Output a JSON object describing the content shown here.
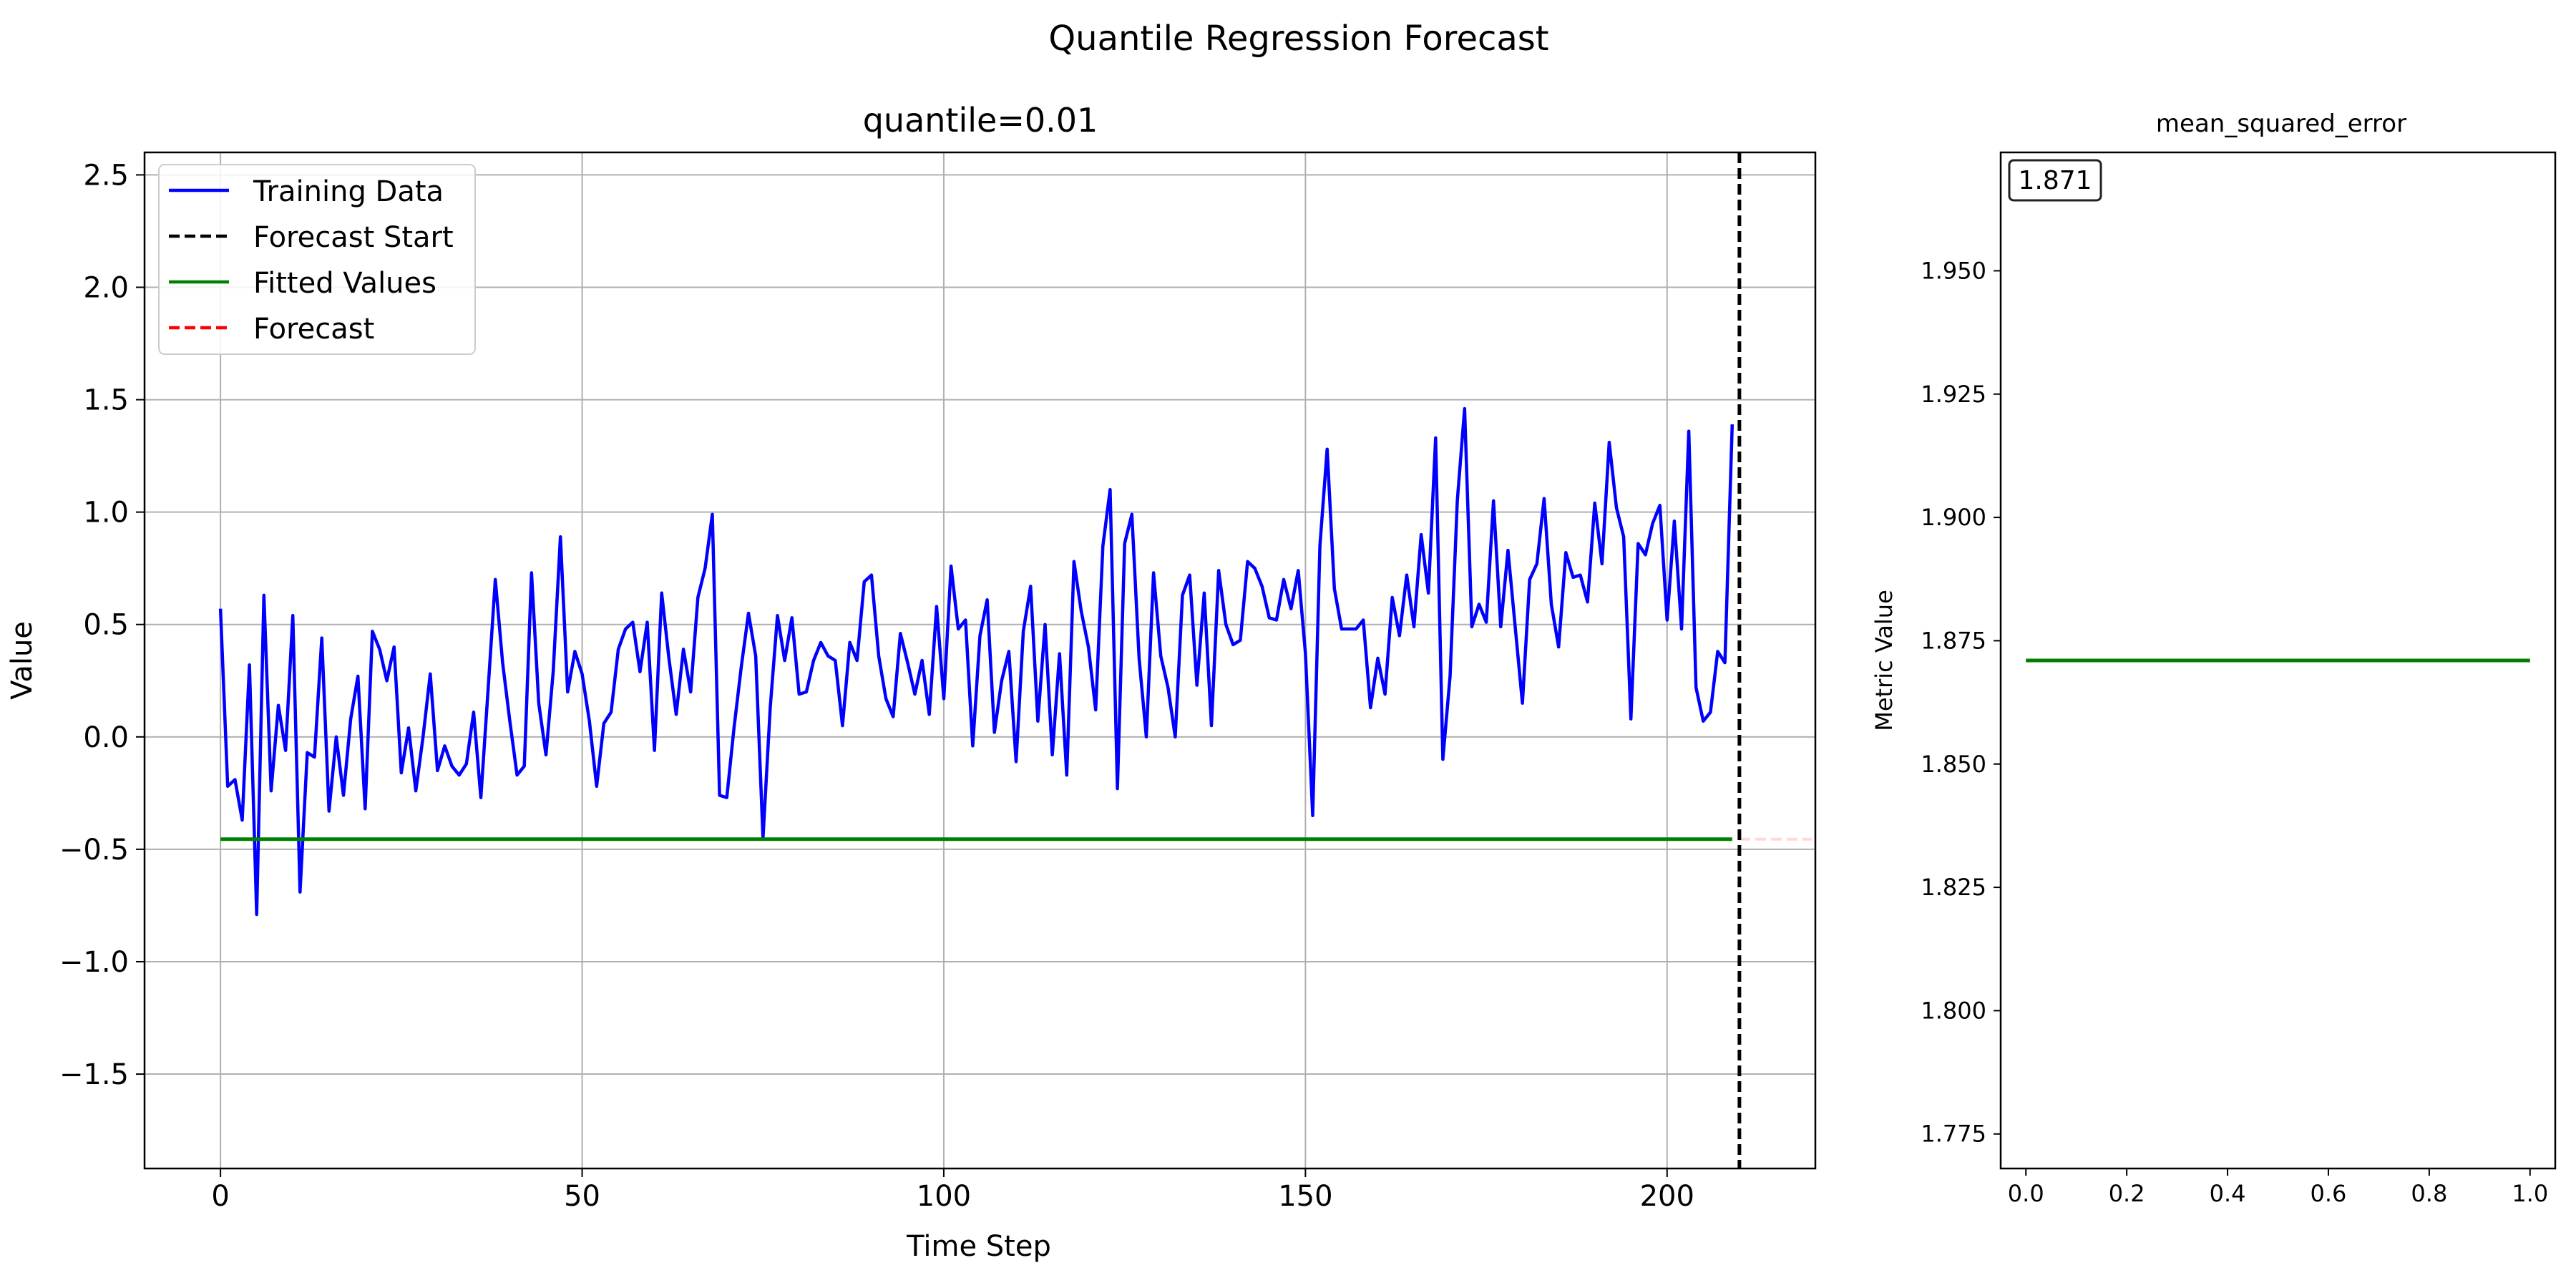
{
  "figure": {
    "suptitle": "Quantile Regression Forecast"
  },
  "chart_data": [
    {
      "type": "line",
      "title": "quantile=0.01",
      "xlabel": "Time Step",
      "ylabel": "Value",
      "xlim": [
        -10.5,
        220.5
      ],
      "ylim": [
        -1.92,
        2.6
      ],
      "xticks": [
        0,
        50,
        100,
        150,
        200
      ],
      "xtick_labels": [
        "0",
        "50",
        "100",
        "150",
        "200"
      ],
      "yticks": [
        -1.5,
        -1.0,
        -0.5,
        0.0,
        0.5,
        1.0,
        1.5,
        2.0,
        2.5
      ],
      "ytick_labels": [
        "−1.5",
        "−1.0",
        "−0.5",
        "0.0",
        "0.5",
        "1.0",
        "1.5",
        "2.0",
        "2.5"
      ],
      "grid": true,
      "legend_position": "top-left",
      "legend": [
        {
          "label": "Training Data",
          "color": "#0000ff",
          "style": "solid"
        },
        {
          "label": "Forecast Start",
          "color": "#000000",
          "style": "dashed"
        },
        {
          "label": "Fitted Values",
          "color": "#008000",
          "style": "solid"
        },
        {
          "label": "Forecast",
          "color": "#ff0000",
          "style": "dashed"
        }
      ],
      "series": [
        {
          "name": "Training Data",
          "color": "#0000ff",
          "x_start": 0,
          "values": [
            0.57,
            -0.22,
            -0.19,
            -0.37,
            0.32,
            -0.79,
            0.63,
            -0.24,
            0.14,
            -0.06,
            0.54,
            -0.69,
            -0.07,
            -0.09,
            0.44,
            -0.33,
            0.0,
            -0.26,
            0.08,
            0.27,
            -0.32,
            0.47,
            0.39,
            0.25,
            0.4,
            -0.16,
            0.04,
            -0.24,
            0.0,
            0.28,
            -0.15,
            -0.04,
            -0.13,
            -0.17,
            -0.12,
            0.11,
            -0.27,
            0.21,
            0.7,
            0.33,
            0.07,
            -0.17,
            -0.13,
            0.73,
            0.15,
            -0.08,
            0.29,
            0.89,
            0.2,
            0.38,
            0.28,
            0.07,
            -0.22,
            0.06,
            0.11,
            0.39,
            0.48,
            0.51,
            0.29,
            0.51,
            -0.06,
            0.64,
            0.35,
            0.1,
            0.39,
            0.2,
            0.62,
            0.75,
            0.99,
            -0.26,
            -0.27,
            0.04,
            0.31,
            0.55,
            0.36,
            -0.45,
            0.13,
            0.54,
            0.34,
            0.53,
            0.19,
            0.2,
            0.34,
            0.42,
            0.36,
            0.34,
            0.05,
            0.42,
            0.34,
            0.69,
            0.72,
            0.36,
            0.17,
            0.09,
            0.46,
            0.33,
            0.19,
            0.34,
            0.1,
            0.58,
            0.17,
            0.76,
            0.48,
            0.52,
            -0.04,
            0.45,
            0.61,
            0.02,
            0.25,
            0.38,
            -0.11,
            0.47,
            0.67,
            0.07,
            0.5,
            -0.08,
            0.37,
            -0.17,
            0.78,
            0.56,
            0.4,
            0.12,
            0.85,
            1.1,
            -0.23,
            0.86,
            0.99,
            0.35,
            0.0,
            0.73,
            0.36,
            0.22,
            0.0,
            0.63,
            0.72,
            0.23,
            0.64,
            0.05,
            0.74,
            0.5,
            0.41,
            0.43,
            0.78,
            0.75,
            0.67,
            0.53,
            0.52,
            0.7,
            0.57,
            0.74,
            0.37,
            -0.35,
            0.85,
            1.28,
            0.66,
            0.48,
            0.48,
            0.48,
            0.52,
            0.13,
            0.35,
            0.19,
            0.62,
            0.45,
            0.72,
            0.49,
            0.9,
            0.64,
            1.33,
            -0.1,
            0.27,
            1.05,
            1.46,
            0.49,
            0.59,
            0.51,
            1.05,
            0.49,
            0.83,
            0.49,
            0.15,
            0.7,
            0.77,
            1.06,
            0.59,
            0.4,
            0.82,
            0.71,
            0.72,
            0.6,
            1.04,
            0.77,
            1.31,
            1.02,
            0.89,
            0.08,
            0.86,
            0.81,
            0.95,
            1.03,
            0.52,
            0.96,
            0.48,
            1.36,
            0.22,
            0.07,
            0.11,
            0.38,
            0.33,
            1.39
          ]
        },
        {
          "name": "Fitted Values",
          "color": "#008000",
          "x": [
            0,
            209
          ],
          "y": [
            -0.455,
            -0.455
          ]
        },
        {
          "name": "Forecast",
          "color": "#ff0000",
          "x": [
            210,
            220
          ],
          "y": [
            -0.455,
            -0.455
          ]
        }
      ],
      "vline": {
        "name": "Forecast Start",
        "x": 210,
        "color": "#000000"
      }
    },
    {
      "type": "line",
      "title": "mean_squared_error",
      "xlabel": "",
      "ylabel": "Metric Value",
      "xlim": [
        -0.05,
        1.05
      ],
      "ylim": [
        1.768,
        1.974
      ],
      "xticks": [
        0.0,
        0.2,
        0.4,
        0.6,
        0.8,
        1.0
      ],
      "xtick_labels": [
        "0.0",
        "0.2",
        "0.4",
        "0.6",
        "0.8",
        "1.0"
      ],
      "yticks": [
        1.775,
        1.8,
        1.825,
        1.85,
        1.875,
        1.9,
        1.925,
        1.95
      ],
      "ytick_labels": [
        "1.775",
        "1.800",
        "1.825",
        "1.850",
        "1.875",
        "1.900",
        "1.925",
        "1.950"
      ],
      "grid": false,
      "series": [
        {
          "name": "mean_squared_error",
          "color": "#008000",
          "x": [
            0,
            1
          ],
          "y": [
            1.871,
            1.871
          ]
        }
      ],
      "annotation": {
        "text": "1.871",
        "color": "#008000"
      }
    }
  ]
}
